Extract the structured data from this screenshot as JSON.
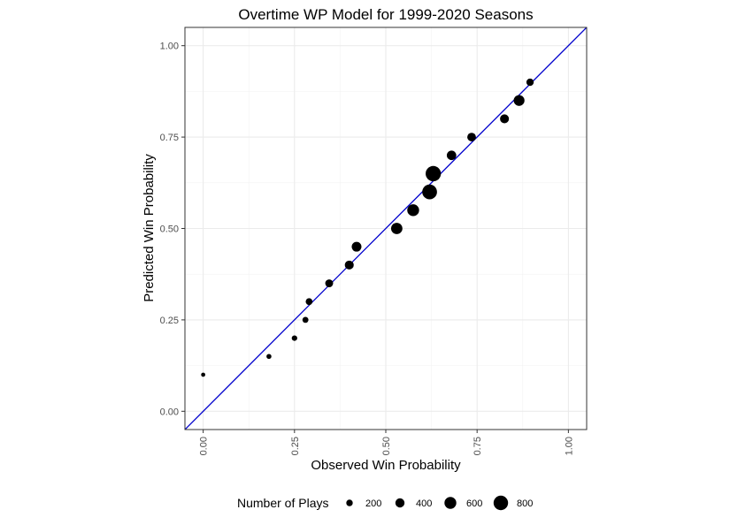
{
  "chart_data": {
    "type": "scatter",
    "title": "Overtime WP Model for 1999-2020 Seasons",
    "xlabel": "Observed Win Probability",
    "ylabel": "Predicted Win Probability",
    "xlim": [
      -0.05,
      1.05
    ],
    "ylim": [
      -0.05,
      1.05
    ],
    "x_ticks": [
      "0.00",
      "0.25",
      "0.50",
      "0.75",
      "1.00"
    ],
    "y_ticks": [
      "0.00",
      "0.25",
      "0.50",
      "0.75",
      "1.00"
    ],
    "grid": true,
    "reference_line": {
      "type": "y=x",
      "color": "#0000cc"
    },
    "points": [
      {
        "x": 0.0,
        "y": 0.1,
        "n": 20
      },
      {
        "x": 0.18,
        "y": 0.15,
        "n": 80
      },
      {
        "x": 0.25,
        "y": 0.2,
        "n": 120
      },
      {
        "x": 0.28,
        "y": 0.25,
        "n": 160
      },
      {
        "x": 0.29,
        "y": 0.3,
        "n": 220
      },
      {
        "x": 0.345,
        "y": 0.35,
        "n": 300
      },
      {
        "x": 0.4,
        "y": 0.4,
        "n": 380
      },
      {
        "x": 0.42,
        "y": 0.45,
        "n": 440
      },
      {
        "x": 0.53,
        "y": 0.5,
        "n": 560
      },
      {
        "x": 0.575,
        "y": 0.55,
        "n": 600
      },
      {
        "x": 0.62,
        "y": 0.6,
        "n": 820
      },
      {
        "x": 0.63,
        "y": 0.65,
        "n": 860
      },
      {
        "x": 0.68,
        "y": 0.7,
        "n": 420
      },
      {
        "x": 0.735,
        "y": 0.75,
        "n": 360
      },
      {
        "x": 0.825,
        "y": 0.8,
        "n": 380
      },
      {
        "x": 0.865,
        "y": 0.85,
        "n": 520
      },
      {
        "x": 0.895,
        "y": 0.9,
        "n": 260
      }
    ],
    "legend": {
      "title": "Number of Plays",
      "position": "bottom",
      "entries": [
        {
          "label": "200",
          "n": 200
        },
        {
          "label": "400",
          "n": 400
        },
        {
          "label": "600",
          "n": 600
        },
        {
          "label": "800",
          "n": 800
        }
      ]
    }
  }
}
